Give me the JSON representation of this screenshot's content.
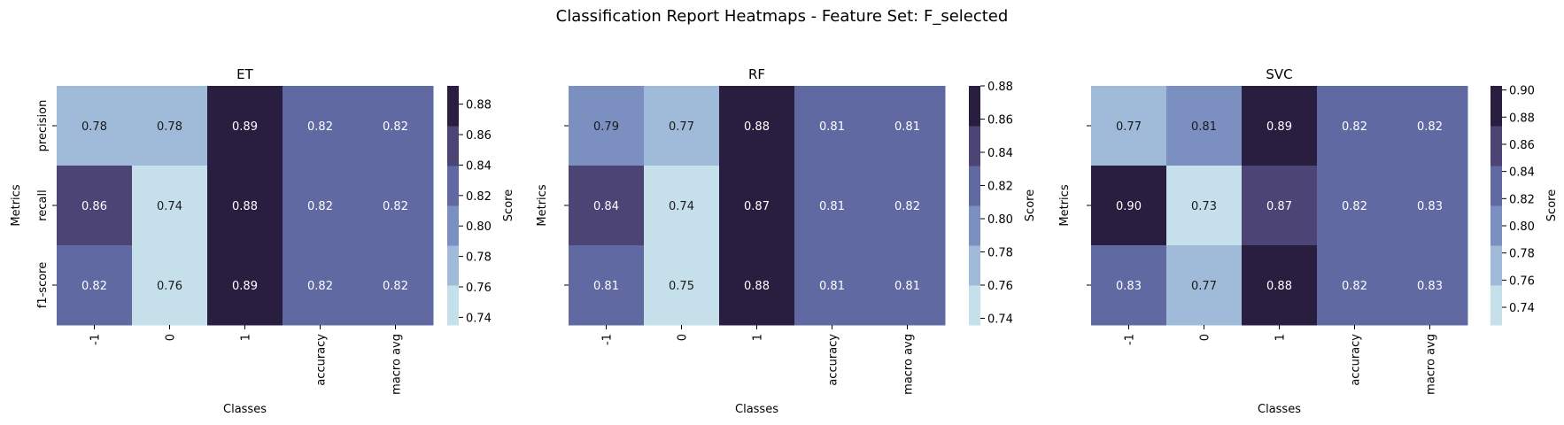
{
  "title": "Classification Report Heatmaps - Feature Set: F_selected",
  "colors": {
    "palette": [
      "#c5e0ea",
      "#9fbbd9",
      "#7b8fc1",
      "#6069a2",
      "#4b4475",
      "#291e3f"
    ]
  },
  "chart_data": [
    {
      "type": "heatmap",
      "title": "ET",
      "xlabel": "Classes",
      "ylabel": "Metrics",
      "colorbar_label": "Score",
      "x_categories": [
        "-1",
        "0",
        "1",
        "accuracy",
        "macro avg"
      ],
      "y_categories": [
        "precision",
        "recall",
        "f1-score"
      ],
      "values": [
        [
          0.78,
          0.78,
          0.89,
          0.82,
          0.82
        ],
        [
          0.86,
          0.74,
          0.88,
          0.82,
          0.82
        ],
        [
          0.82,
          0.76,
          0.89,
          0.82,
          0.82
        ]
      ],
      "annotations": [
        [
          "0.78",
          "0.78",
          "0.89",
          "0.82",
          "0.82"
        ],
        [
          "0.86",
          "0.74",
          "0.88",
          "0.82",
          "0.82"
        ],
        [
          "0.82",
          "0.76",
          "0.89",
          "0.82",
          "0.82"
        ]
      ],
      "vmin": 0.735,
      "vmax": 0.892,
      "colorbar_ticks": [
        "0.74",
        "0.76",
        "0.78",
        "0.80",
        "0.82",
        "0.84",
        "0.86",
        "0.88"
      ],
      "show_y_ticklabels": true
    },
    {
      "type": "heatmap",
      "title": "RF",
      "xlabel": "Classes",
      "ylabel": "Metrics",
      "colorbar_label": "Score",
      "x_categories": [
        "-1",
        "0",
        "1",
        "accuracy",
        "macro avg"
      ],
      "y_categories": [
        "precision",
        "recall",
        "f1-score"
      ],
      "values": [
        [
          0.79,
          0.77,
          0.88,
          0.81,
          0.81
        ],
        [
          0.84,
          0.74,
          0.87,
          0.81,
          0.82
        ],
        [
          0.81,
          0.75,
          0.88,
          0.81,
          0.81
        ]
      ],
      "annotations": [
        [
          "0.79",
          "0.77",
          "0.88",
          "0.81",
          "0.81"
        ],
        [
          "0.84",
          "0.74",
          "0.87",
          "0.81",
          "0.82"
        ],
        [
          "0.81",
          "0.75",
          "0.88",
          "0.81",
          "0.81"
        ]
      ],
      "vmin": 0.736,
      "vmax": 0.88,
      "colorbar_ticks": [
        "0.74",
        "0.76",
        "0.78",
        "0.80",
        "0.82",
        "0.84",
        "0.86",
        "0.88"
      ],
      "show_y_ticklabels": false
    },
    {
      "type": "heatmap",
      "title": "SVC",
      "xlabel": "Classes",
      "ylabel": "Metrics",
      "colorbar_label": "Score",
      "x_categories": [
        "-1",
        "0",
        "1",
        "accuracy",
        "macro avg"
      ],
      "y_categories": [
        "precision",
        "recall",
        "f1-score"
      ],
      "values": [
        [
          0.77,
          0.81,
          0.89,
          0.82,
          0.82
        ],
        [
          0.9,
          0.73,
          0.87,
          0.82,
          0.83
        ],
        [
          0.83,
          0.77,
          0.88,
          0.82,
          0.83
        ]
      ],
      "annotations": [
        [
          "0.77",
          "0.81",
          "0.89",
          "0.82",
          "0.82"
        ],
        [
          "0.90",
          "0.73",
          "0.87",
          "0.82",
          "0.83"
        ],
        [
          "0.83",
          "0.77",
          "0.88",
          "0.82",
          "0.83"
        ]
      ],
      "vmin": 0.727,
      "vmax": 0.903,
      "colorbar_ticks": [
        "0.74",
        "0.76",
        "0.78",
        "0.80",
        "0.82",
        "0.84",
        "0.86",
        "0.88",
        "0.90"
      ],
      "show_y_ticklabels": false
    }
  ]
}
